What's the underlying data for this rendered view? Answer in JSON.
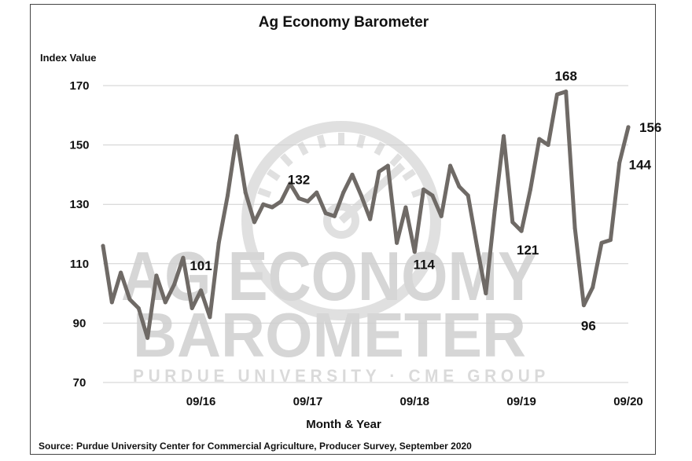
{
  "chart_data": {
    "type": "line",
    "title": "Ag Economy Barometer",
    "ylabel": "Index Value",
    "xlabel": "Month & Year",
    "ylim": [
      70,
      170
    ],
    "yticks": [
      70,
      90,
      110,
      130,
      150,
      170
    ],
    "xticks": [
      "09/16",
      "09/17",
      "09/18",
      "09/19",
      "09/20"
    ],
    "x": [
      "10/15",
      "11/15",
      "12/15",
      "01/16",
      "02/16",
      "03/16",
      "04/16",
      "05/16",
      "06/16",
      "07/16",
      "08/16",
      "09/16",
      "10/16",
      "11/16",
      "12/16",
      "01/17",
      "02/17",
      "03/17",
      "04/17",
      "05/17",
      "06/17",
      "07/17",
      "08/17",
      "09/17",
      "10/17",
      "11/17",
      "12/17",
      "01/18",
      "02/18",
      "03/18",
      "04/18",
      "05/18",
      "06/18",
      "07/18",
      "08/18",
      "09/18",
      "10/18",
      "11/18",
      "12/18",
      "01/19",
      "02/19",
      "03/19",
      "04/19",
      "05/19",
      "06/19",
      "07/19",
      "08/19",
      "09/19",
      "10/19",
      "11/19",
      "12/19",
      "01/20",
      "02/20",
      "03/20",
      "04/20",
      "05/20",
      "06/20",
      "07/20",
      "08/20",
      "09/20"
    ],
    "series": [
      {
        "values": [
          116,
          97,
          107,
          98,
          95,
          85,
          106,
          97,
          103,
          112,
          95,
          101,
          92,
          117,
          133,
          153,
          134,
          124,
          130,
          129,
          131,
          137,
          132,
          131,
          134,
          127,
          126,
          134,
          140,
          133,
          125,
          141,
          143,
          117,
          129,
          114,
          135,
          133,
          126,
          143,
          136,
          133,
          116,
          100,
          128,
          153,
          124,
          121,
          135,
          152,
          150,
          167,
          168,
          122,
          96,
          102,
          117,
          118,
          144,
          156
        ],
        "color": "#6f6a66"
      }
    ],
    "annotations": [
      {
        "text": "101",
        "x": "09/16"
      },
      {
        "text": "132",
        "x": "08/17"
      },
      {
        "text": "114",
        "x": "09/18"
      },
      {
        "text": "121",
        "x": "09/19"
      },
      {
        "text": "168",
        "x": "02/20"
      },
      {
        "text": "96",
        "x": "04/20"
      },
      {
        "text": "144",
        "x": "08/20"
      },
      {
        "text": "156",
        "x": "09/20"
      }
    ],
    "grid": true,
    "legend": "none"
  },
  "watermark": {
    "line1": "AG ECONOMY",
    "line2": "BAROMETER",
    "line3": "PURDUE UNIVERSITY · CME GROUP"
  },
  "source": "Source: Purdue University Center for Commercial Agriculture, Producer Survey, September 2020"
}
